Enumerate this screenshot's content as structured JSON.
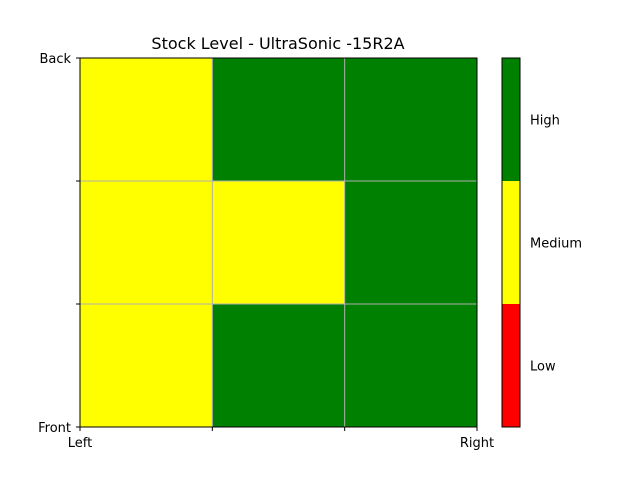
{
  "chart_data": {
    "type": "heatmap",
    "title": "Stock Level - UltraSonic -15R2A",
    "xlabel": "",
    "ylabel": "",
    "x_tick_labels": [
      "Left",
      "",
      "",
      "Right"
    ],
    "y_tick_labels": [
      "Back",
      "",
      "",
      "Front"
    ],
    "rows": [
      "back",
      "middle",
      "front"
    ],
    "columns": [
      "left",
      "middle",
      "right"
    ],
    "values": [
      [
        "Medium",
        "High",
        "High"
      ],
      [
        "Medium",
        "Medium",
        "High"
      ],
      [
        "Medium",
        "High",
        "High"
      ]
    ],
    "grid": true,
    "colorbar": {
      "levels": [
        "Low",
        "Medium",
        "High"
      ],
      "colors": [
        "#ff0000",
        "#ffff00",
        "#008000"
      ],
      "placement": "right"
    }
  }
}
